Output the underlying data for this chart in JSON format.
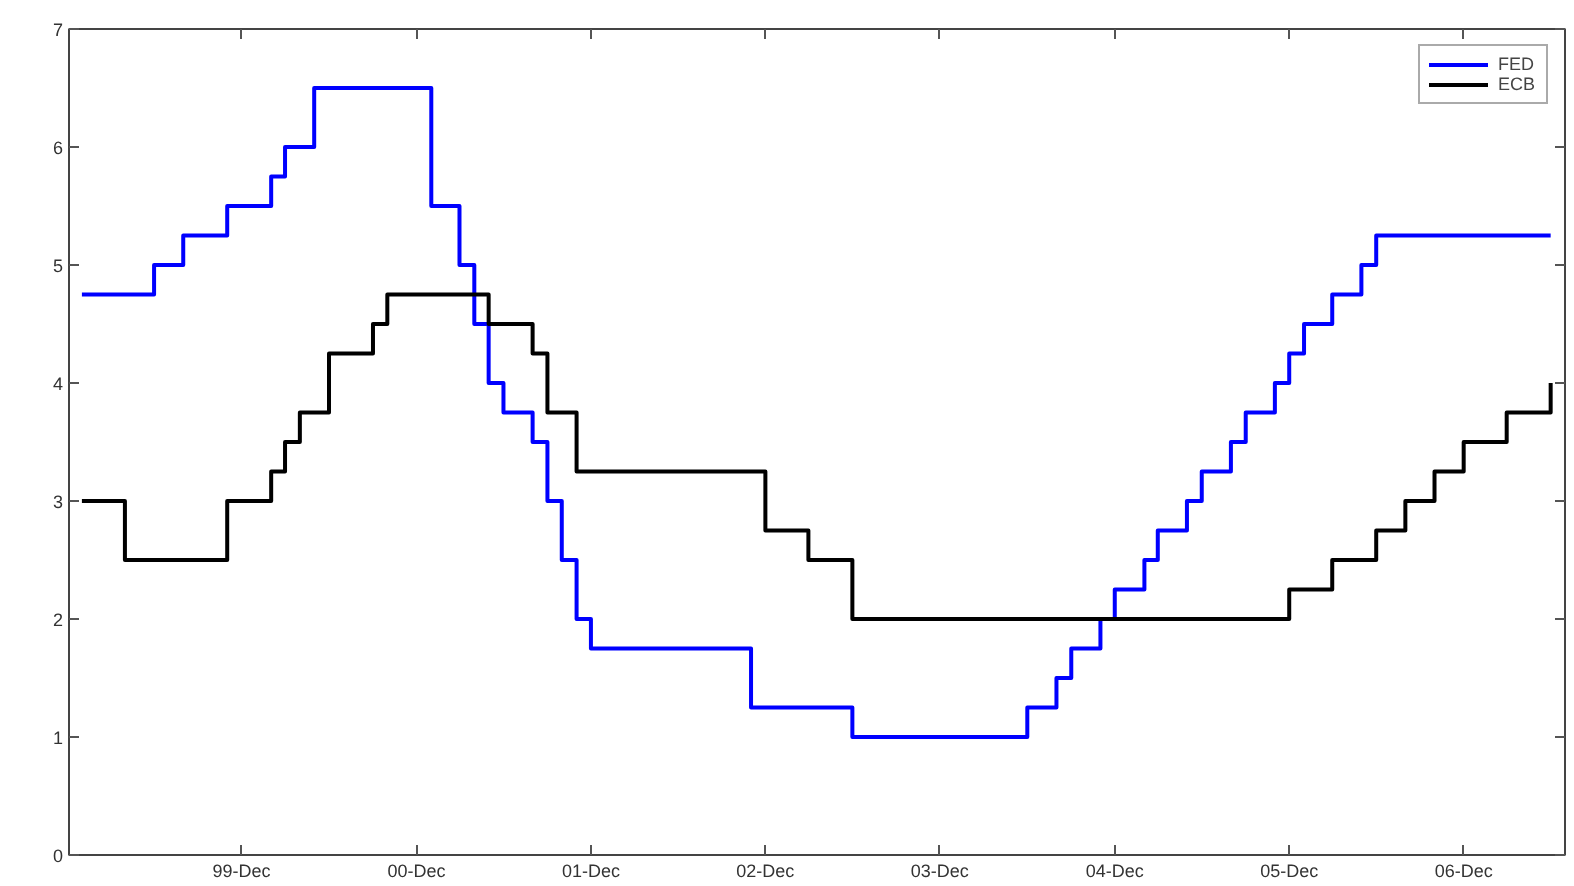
{
  "chart_data": {
    "type": "step",
    "xlim": [
      "1998-12-05",
      "2007-07-01"
    ],
    "ylim": [
      0,
      7
    ],
    "yticks": [
      0,
      1,
      2,
      3,
      4,
      5,
      6,
      7
    ],
    "xticks": [
      {
        "value": "1999-12-01",
        "label": "99-Dec"
      },
      {
        "value": "2000-12-01",
        "label": "00-Dec"
      },
      {
        "value": "2001-12-01",
        "label": "01-Dec"
      },
      {
        "value": "2002-12-01",
        "label": "02-Dec"
      },
      {
        "value": "2003-12-01",
        "label": "03-Dec"
      },
      {
        "value": "2004-12-01",
        "label": "04-Dec"
      },
      {
        "value": "2005-12-01",
        "label": "05-Dec"
      },
      {
        "value": "2006-12-01",
        "label": "06-Dec"
      }
    ],
    "grid": false,
    "legend": "top right",
    "line_style": "solid",
    "marker": "none",
    "series": [
      {
        "name": "FED",
        "color": "#0000ff",
        "x": [
          "1999-01",
          "1999-06",
          "1999-08",
          "1999-11",
          "2000-02",
          "2000-03",
          "2000-05",
          "2001-01",
          "2001-03",
          "2001-04",
          "2001-05",
          "2001-06",
          "2001-08",
          "2001-09",
          "2001-10",
          "2001-11",
          "2001-12",
          "2002-11",
          "2003-06",
          "2004-06",
          "2004-08",
          "2004-09",
          "2004-11",
          "2004-12",
          "2005-02",
          "2005-03",
          "2005-05",
          "2005-06",
          "2005-08",
          "2005-09",
          "2005-11",
          "2005-12",
          "2006-01",
          "2006-03",
          "2006-05",
          "2006-06",
          "2007-06"
        ],
        "values": [
          4.75,
          5.0,
          5.25,
          5.5,
          5.75,
          6.0,
          6.5,
          5.5,
          5.0,
          4.5,
          4.0,
          3.75,
          3.5,
          3.0,
          2.5,
          2.0,
          1.75,
          1.25,
          1.0,
          1.25,
          1.5,
          1.75,
          2.0,
          2.25,
          2.5,
          2.75,
          3.0,
          3.25,
          3.5,
          3.75,
          4.0,
          4.25,
          4.5,
          4.75,
          5.0,
          5.25,
          5.25
        ]
      },
      {
        "name": "ECB",
        "color": "#000000",
        "x": [
          "1999-01",
          "1999-04",
          "1999-11",
          "2000-02",
          "2000-03",
          "2000-04",
          "2000-06",
          "2000-09",
          "2000-10",
          "2001-05",
          "2001-08",
          "2001-09",
          "2001-11",
          "2002-12",
          "2003-03",
          "2003-06",
          "2005-12",
          "2006-03",
          "2006-06",
          "2006-08",
          "2006-10",
          "2006-12",
          "2007-03",
          "2007-06"
        ],
        "values": [
          3.0,
          2.5,
          3.0,
          3.25,
          3.5,
          3.75,
          4.25,
          4.5,
          4.75,
          4.5,
          4.25,
          3.75,
          3.25,
          2.75,
          2.5,
          2.0,
          2.25,
          2.5,
          2.75,
          3.0,
          3.25,
          3.5,
          3.75,
          4.0
        ]
      }
    ]
  }
}
